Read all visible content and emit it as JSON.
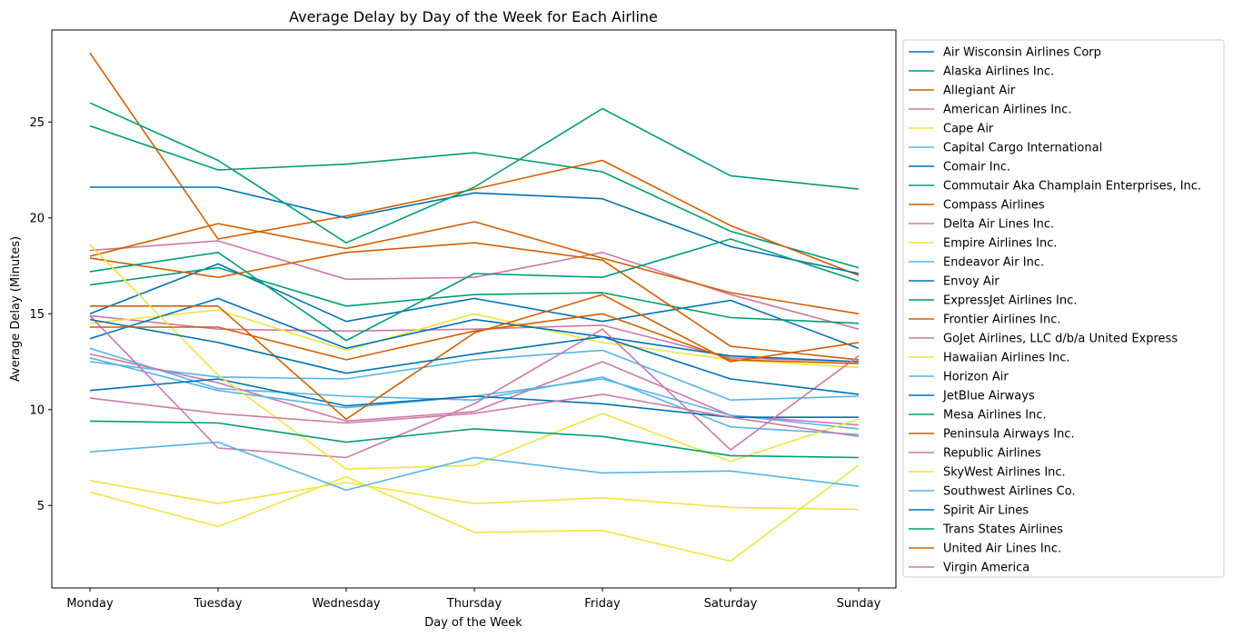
{
  "chart_data": {
    "type": "line",
    "title": "Average Delay by Day of the Week for Each Airline",
    "xlabel": "Day of the Week",
    "ylabel": "Average Delay (Minutes)",
    "categories": [
      "Monday",
      "Tuesday",
      "Wednesday",
      "Thursday",
      "Friday",
      "Saturday",
      "Sunday"
    ],
    "ylim": [
      0.7,
      29.8
    ],
    "yticks": [
      5,
      10,
      15,
      20,
      25
    ],
    "grid": false,
    "legend_position": "outside-right",
    "colors": {
      "blue": "#0072b2",
      "green": "#009e73",
      "orange": "#d55e00",
      "pink": "#cc79a7",
      "yellow": "#f0e442",
      "sky": "#56b4e9"
    },
    "series": [
      {
        "name": "Air Wisconsin Airlines Corp",
        "color": "#0072b2",
        "values": [
          15.0,
          17.6,
          14.6,
          15.8,
          14.6,
          15.7,
          13.2
        ]
      },
      {
        "name": "Alaska Airlines Inc.",
        "color": "#009e73",
        "values": [
          24.8,
          22.5,
          22.8,
          23.4,
          22.4,
          19.3,
          17.4
        ]
      },
      {
        "name": "Allegiant Air",
        "color": "#d55e00",
        "values": [
          28.6,
          18.9,
          20.1,
          21.5,
          23.0,
          19.6,
          17.0
        ]
      },
      {
        "name": "American Airlines Inc.",
        "color": "#cc79a7",
        "values": [
          18.3,
          18.8,
          16.8,
          16.9,
          18.2,
          16.0,
          14.2
        ]
      },
      {
        "name": "Cape Air",
        "color": "#f0e442",
        "values": [
          5.7,
          3.9,
          6.5,
          3.6,
          3.7,
          2.1,
          7.1
        ]
      },
      {
        "name": "Capital Cargo International",
        "color": "#56b4e9",
        "values": [
          12.5,
          11.7,
          11.6,
          12.6,
          13.1,
          10.5,
          10.7
        ]
      },
      {
        "name": "Comair Inc.",
        "color": "#0072b2",
        "values": [
          21.6,
          21.6,
          20.0,
          21.3,
          21.0,
          18.5,
          17.1
        ]
      },
      {
        "name": "Commutair Aka Champlain Enterprises, Inc.",
        "color": "#009e73",
        "values": [
          26.0,
          23.0,
          18.7,
          21.6,
          25.7,
          22.2,
          21.5
        ]
      },
      {
        "name": "Compass Airlines",
        "color": "#d55e00",
        "values": [
          18.0,
          19.7,
          18.4,
          19.8,
          17.9,
          16.1,
          15.0
        ]
      },
      {
        "name": "Delta Air Lines Inc.",
        "color": "#cc79a7",
        "values": [
          14.9,
          14.2,
          14.1,
          14.2,
          14.4,
          12.7,
          12.5
        ]
      },
      {
        "name": "Empire Airlines Inc.",
        "color": "#f0e442",
        "values": [
          14.5,
          15.2,
          13.1,
          15.0,
          13.5,
          12.6,
          12.2
        ]
      },
      {
        "name": "Endeavor Air Inc.",
        "color": "#56b4e9",
        "values": [
          13.2,
          11.1,
          10.7,
          10.5,
          11.7,
          9.1,
          8.7
        ]
      },
      {
        "name": "Envoy Air",
        "color": "#0072b2",
        "values": [
          13.7,
          15.8,
          13.2,
          14.7,
          13.8,
          12.8,
          12.5
        ]
      },
      {
        "name": "ExpressJet Airlines Inc.",
        "color": "#009e73",
        "values": [
          16.5,
          17.4,
          15.4,
          16.0,
          16.1,
          14.8,
          14.5
        ]
      },
      {
        "name": "Frontier Airlines Inc.",
        "color": "#d55e00",
        "values": [
          17.9,
          16.9,
          18.2,
          18.7,
          17.8,
          13.3,
          12.6
        ]
      },
      {
        "name": "GoJet Airlines, LLC d/b/a United Express",
        "color": "#cc79a7",
        "values": [
          12.9,
          11.4,
          9.4,
          9.9,
          12.5,
          9.7,
          9.2
        ]
      },
      {
        "name": "Hawaiian Airlines Inc.",
        "color": "#f0e442",
        "values": [
          6.3,
          5.1,
          6.2,
          5.1,
          5.4,
          4.9,
          4.8
        ]
      },
      {
        "name": "Horizon Air",
        "color": "#56b4e9",
        "values": [
          12.7,
          11.0,
          10.1,
          10.7,
          11.6,
          9.7,
          9.0
        ]
      },
      {
        "name": "JetBlue Airways",
        "color": "#0072b2",
        "values": [
          11.0,
          11.6,
          10.2,
          10.7,
          10.3,
          9.6,
          9.6
        ]
      },
      {
        "name": "Mesa Airlines Inc.",
        "color": "#009e73",
        "values": [
          17.2,
          18.2,
          13.6,
          17.1,
          16.9,
          18.9,
          16.7
        ]
      },
      {
        "name": "Peninsula Airways Inc.",
        "color": "#d55e00",
        "values": [
          15.4,
          15.4,
          9.5,
          14.0,
          16.0,
          12.5,
          13.5
        ]
      },
      {
        "name": "Republic Airlines",
        "color": "#cc79a7",
        "values": [
          14.9,
          8.0,
          7.5,
          10.3,
          14.2,
          7.9,
          12.8
        ]
      },
      {
        "name": "SkyWest Airlines Inc.",
        "color": "#f0e442",
        "values": [
          18.6,
          11.8,
          6.9,
          7.1,
          9.8,
          7.3,
          9.5
        ]
      },
      {
        "name": "Southwest Airlines Co.",
        "color": "#56b4e9",
        "values": [
          7.8,
          8.3,
          5.8,
          7.5,
          6.7,
          6.8,
          6.0
        ]
      },
      {
        "name": "Spirit Air Lines",
        "color": "#0072b2",
        "values": [
          14.7,
          13.5,
          11.9,
          12.9,
          13.8,
          11.6,
          10.8
        ]
      },
      {
        "name": "Trans States Airlines",
        "color": "#009e73",
        "values": [
          9.4,
          9.3,
          8.3,
          9.0,
          8.6,
          7.6,
          7.5
        ]
      },
      {
        "name": "United Air Lines Inc.",
        "color": "#d55e00",
        "values": [
          14.3,
          14.3,
          12.6,
          14.1,
          15.0,
          12.6,
          12.4
        ]
      },
      {
        "name": "Virgin America",
        "color": "#cc79a7",
        "values": [
          10.6,
          9.8,
          9.3,
          9.8,
          10.8,
          9.6,
          8.6
        ]
      }
    ]
  }
}
